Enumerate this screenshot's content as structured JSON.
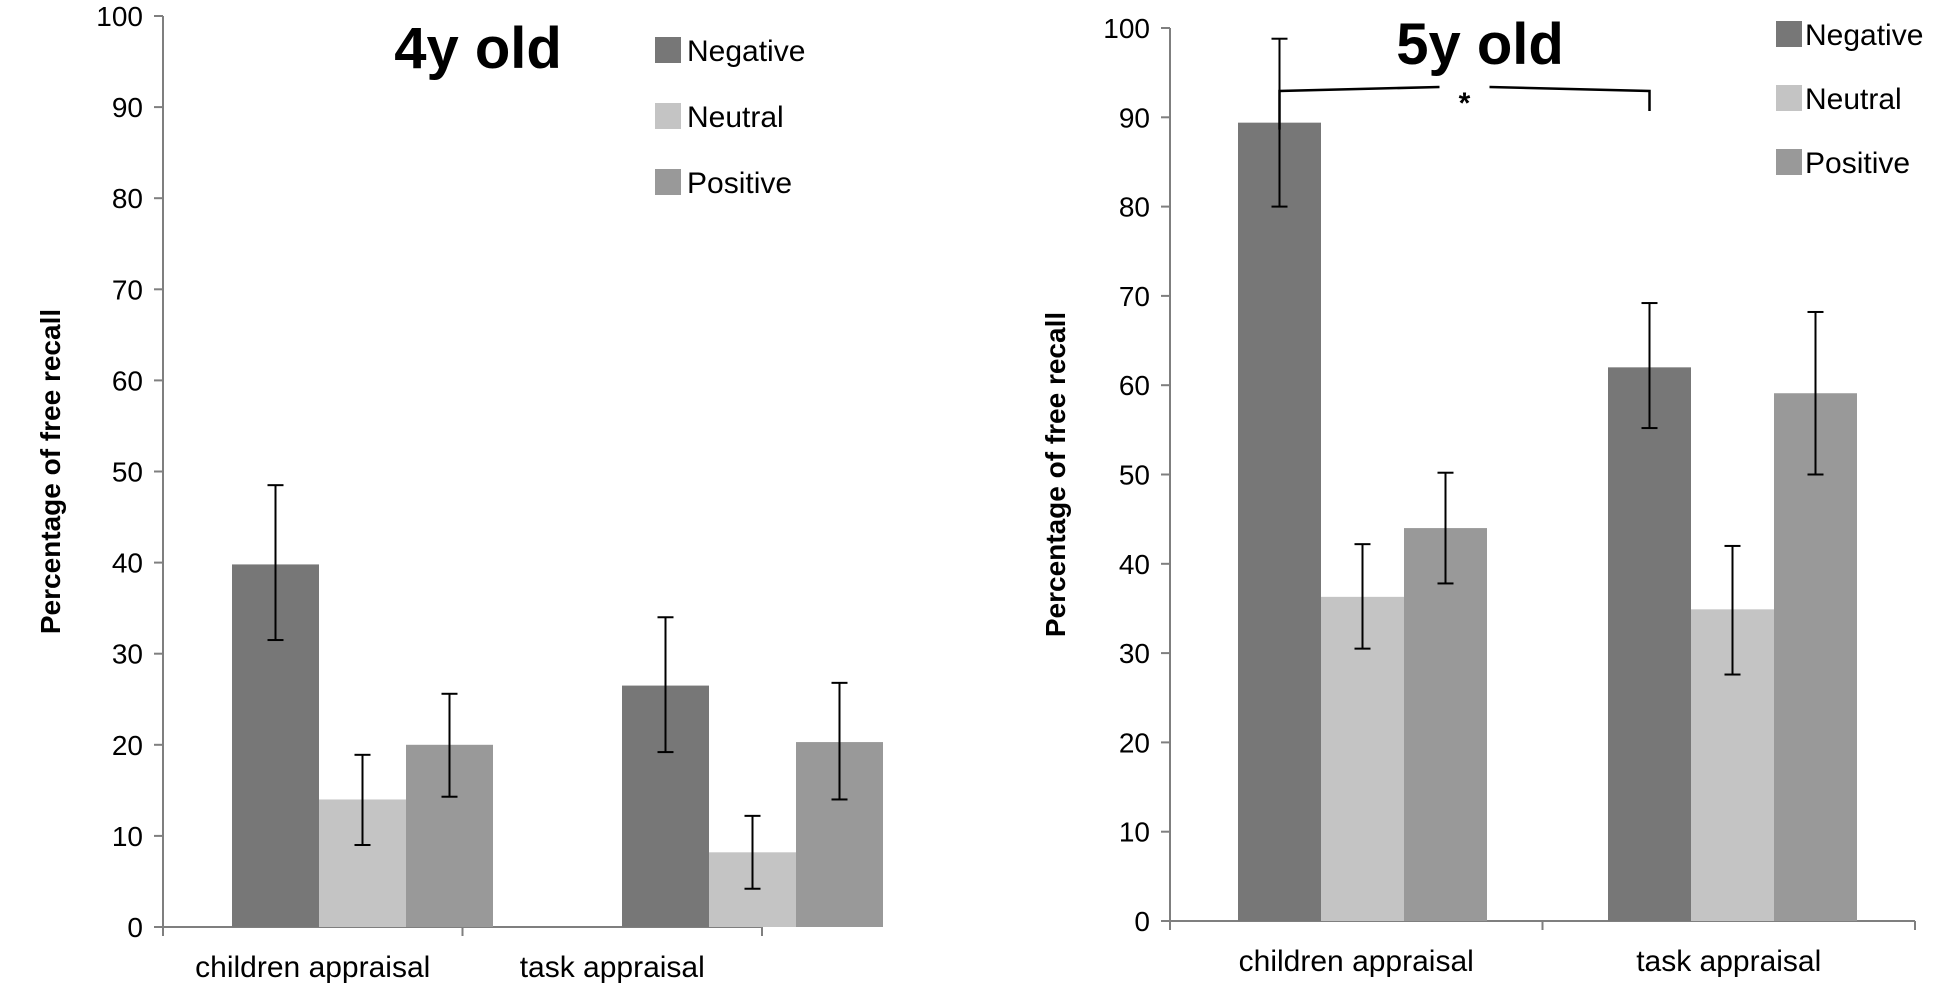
{
  "chart_data": [
    {
      "type": "bar",
      "title": "4y old",
      "xlabel": "",
      "ylabel": "Percentage of free recall",
      "ylim": [
        0,
        100
      ],
      "yticks": [
        0,
        10,
        20,
        30,
        40,
        50,
        60,
        70,
        80,
        90,
        100
      ],
      "grid": false,
      "legend": "top-right",
      "categories": [
        "children appraisal",
        "task appraisal"
      ],
      "series": [
        {
          "name": "Negative",
          "color": "#777777",
          "values": [
            39.8,
            26.5
          ],
          "err_low": [
            31.5,
            19.2
          ],
          "err_high": [
            48.5,
            34.0
          ]
        },
        {
          "name": "Neutral",
          "color": "#c4c4c4",
          "values": [
            14.0,
            8.2
          ],
          "err_low": [
            9.0,
            4.2
          ],
          "err_high": [
            18.9,
            12.2
          ]
        },
        {
          "name": "Positive",
          "color": "#999999",
          "values": [
            20.0,
            20.3
          ],
          "err_low": [
            14.3,
            14.0
          ],
          "err_high": [
            25.6,
            26.8
          ]
        }
      ],
      "annotations": []
    },
    {
      "type": "bar",
      "title": "5y old",
      "xlabel": "",
      "ylabel": "Percentage of free recall",
      "ylim": [
        0,
        100
      ],
      "yticks": [
        0,
        10,
        20,
        30,
        40,
        50,
        60,
        70,
        80,
        90,
        100
      ],
      "grid": false,
      "legend": "top-right",
      "categories": [
        "children appraisal",
        "task appraisal"
      ],
      "series": [
        {
          "name": "Negative",
          "color": "#777777",
          "values": [
            89.4,
            62.0
          ],
          "err_low": [
            80.0,
            55.2
          ],
          "err_high": [
            98.8,
            69.2
          ]
        },
        {
          "name": "Neutral",
          "color": "#c4c4c4",
          "values": [
            36.3,
            34.9
          ],
          "err_low": [
            30.5,
            27.6
          ],
          "err_high": [
            42.2,
            42.0
          ]
        },
        {
          "name": "Positive",
          "color": "#999999",
          "values": [
            44.0,
            59.1
          ],
          "err_low": [
            37.8,
            50.0
          ],
          "err_high": [
            50.2,
            68.2
          ]
        }
      ],
      "annotations": [
        {
          "text": "*",
          "between_series": "Negative",
          "between_categories": [
            "children appraisal",
            "task appraisal"
          ]
        }
      ]
    }
  ]
}
